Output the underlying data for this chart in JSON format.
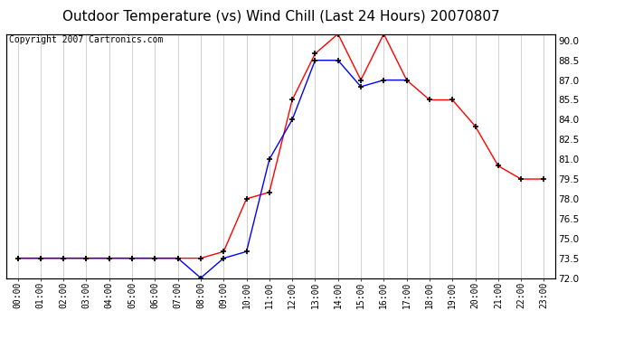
{
  "title": "Outdoor Temperature (vs) Wind Chill (Last 24 Hours) 20070807",
  "copyright": "Copyright 2007 Cartronics.com",
  "hours": [
    "00:00",
    "01:00",
    "02:00",
    "03:00",
    "04:00",
    "05:00",
    "06:00",
    "07:00",
    "08:00",
    "09:00",
    "10:00",
    "11:00",
    "12:00",
    "13:00",
    "14:00",
    "15:00",
    "16:00",
    "17:00",
    "18:00",
    "19:00",
    "20:00",
    "21:00",
    "22:00",
    "23:00"
  ],
  "outdoor_temp": [
    73.5,
    73.5,
    73.5,
    73.5,
    73.5,
    73.5,
    73.5,
    73.5,
    73.5,
    74.0,
    78.0,
    78.5,
    85.5,
    89.0,
    90.5,
    87.0,
    90.5,
    87.0,
    85.5,
    85.5,
    83.5,
    80.5,
    79.5,
    79.5
  ],
  "wind_chill": [
    73.5,
    73.5,
    73.5,
    73.5,
    73.5,
    73.5,
    73.5,
    73.5,
    72.0,
    73.5,
    74.0,
    81.0,
    84.0,
    88.5,
    88.5,
    86.5,
    87.0,
    87.0,
    null,
    null,
    null,
    null,
    null,
    null
  ],
  "ylim": [
    72.0,
    90.5
  ],
  "yticks": [
    72.0,
    73.5,
    75.0,
    76.5,
    78.0,
    79.5,
    81.0,
    82.5,
    84.0,
    85.5,
    87.0,
    88.5,
    90.0
  ],
  "temp_color": "#ff0000",
  "wind_color": "#0000ff",
  "marker": "+",
  "marker_color": "#000000",
  "bg_color": "#ffffff",
  "grid_color": "#c8c8c8",
  "title_fontsize": 11,
  "copyright_fontsize": 7,
  "tick_fontsize": 7,
  "ytick_fontsize": 7.5
}
